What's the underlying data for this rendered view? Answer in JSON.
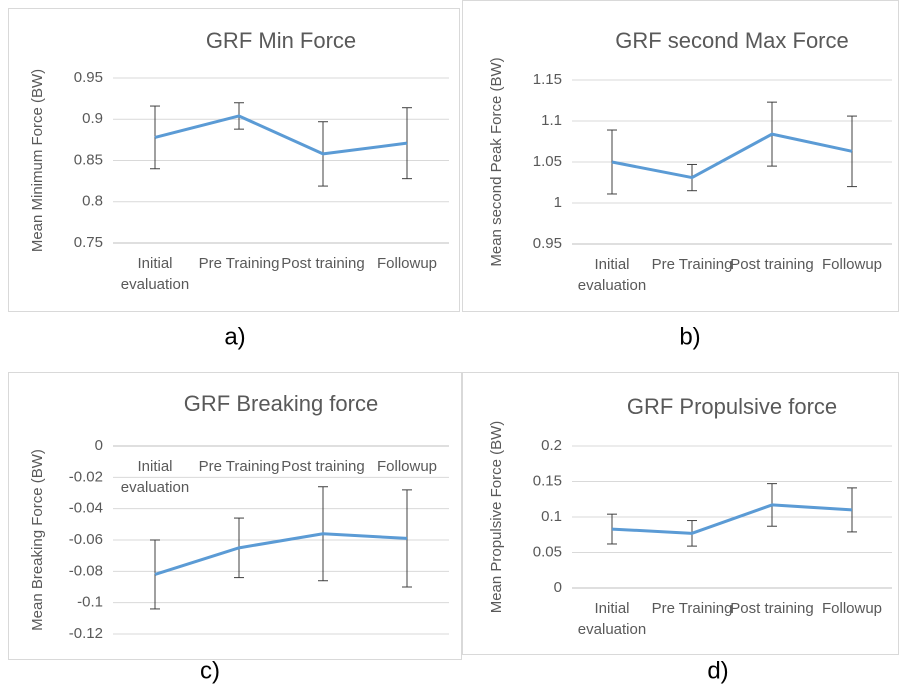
{
  "chart_data": [
    {
      "type": "line",
      "title": "GRF Min Force",
      "y_label": "Mean Minimum Force (BW)",
      "caption": "a)",
      "categories": [
        "Initial evaluation",
        "Pre Training",
        "Post training",
        "Followup"
      ],
      "series": [
        {
          "color": "#5b9bd5",
          "values": [
            0.878,
            0.904,
            0.858,
            0.871
          ],
          "errors": [
            0.038,
            0.016,
            0.039,
            0.043
          ]
        }
      ],
      "ylim": [
        0.75,
        0.95
      ],
      "yticks": [
        0.75,
        0.8,
        0.85,
        0.9,
        0.95
      ],
      "grid": true
    },
    {
      "type": "line",
      "title": "GRF second Max Force",
      "y_label": "Mean second Peak Force (BW)",
      "caption": "b)",
      "categories": [
        "Initial evaluation",
        "Pre Training",
        "Post training",
        "Followup"
      ],
      "series": [
        {
          "color": "#5b9bd5",
          "values": [
            1.05,
            1.031,
            1.084,
            1.063
          ],
          "errors": [
            0.039,
            0.016,
            0.039,
            0.043
          ]
        }
      ],
      "ylim": [
        0.95,
        1.15
      ],
      "yticks": [
        0.95,
        1,
        1.05,
        1.1,
        1.15
      ],
      "grid": true
    },
    {
      "type": "line",
      "title": "GRF Breaking force",
      "y_label": "Mean Breaking Force (BW)",
      "caption": "c)",
      "categories": [
        "Initial evaluation",
        "Pre Training",
        "Post training",
        "Followup"
      ],
      "series": [
        {
          "color": "#5b9bd5",
          "values": [
            -0.082,
            -0.065,
            -0.056,
            -0.059
          ],
          "errors": [
            0.022,
            0.019,
            0.03,
            0.031
          ]
        }
      ],
      "ylim": [
        -0.12,
        0
      ],
      "yticks": [
        -0.12,
        -0.1,
        -0.08,
        -0.06,
        -0.04,
        -0.02,
        0
      ],
      "grid": true
    },
    {
      "type": "line",
      "title": "GRF Propulsive force",
      "y_label": "Mean Propulsive Force (BW)",
      "caption": "d)",
      "categories": [
        "Initial evaluation",
        "Pre Training",
        "Post training",
        "Followup"
      ],
      "series": [
        {
          "color": "#5b9bd5",
          "values": [
            0.083,
            0.077,
            0.117,
            0.11
          ],
          "errors": [
            0.021,
            0.018,
            0.03,
            0.031
          ]
        }
      ],
      "ylim": [
        0,
        0.2
      ],
      "yticks": [
        0,
        0.05,
        0.1,
        0.15,
        0.2
      ],
      "grid": true
    }
  ]
}
